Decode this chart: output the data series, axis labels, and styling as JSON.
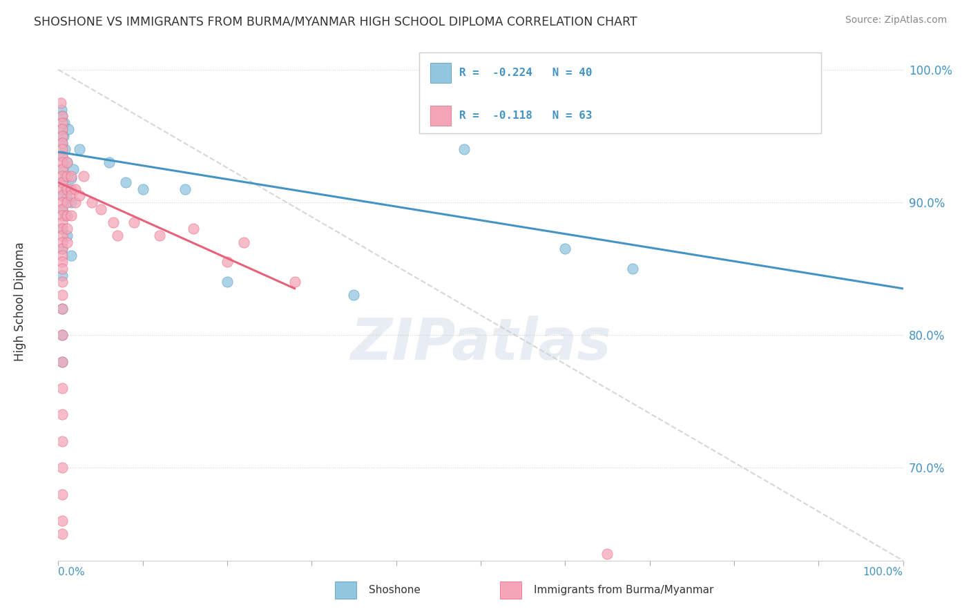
{
  "title": "SHOSHONE VS IMMIGRANTS FROM BURMA/MYANMAR HIGH SCHOOL DIPLOMA CORRELATION CHART",
  "source": "Source: ZipAtlas.com",
  "ylabel": "High School Diploma",
  "legend_label1": "Shoshone",
  "legend_label2": "Immigrants from Burma/Myanmar",
  "watermark": "ZIPatlas",
  "shoshone_color": "#92c5de",
  "burma_color": "#f4a6b8",
  "shoshone_line_color": "#4393c3",
  "burma_line_color": "#e8607a",
  "dashed_line_color": "#cccccc",
  "background_color": "#ffffff",
  "title_color": "#444444",
  "axis_color": "#4393c3",
  "right_tick_color": "#4393c3",
  "legend_r1": "R = -0.224",
  "legend_n1": "N = 40",
  "legend_r2": "R = -0.118",
  "legend_n2": "N = 63",
  "shoshone_points": [
    [
      0.4,
      97.0
    ],
    [
      0.5,
      96.5
    ],
    [
      0.7,
      96.0
    ],
    [
      0.4,
      95.5
    ],
    [
      0.6,
      95.0
    ],
    [
      1.2,
      95.5
    ],
    [
      0.5,
      94.5
    ],
    [
      0.8,
      94.0
    ],
    [
      2.5,
      94.0
    ],
    [
      0.5,
      93.5
    ],
    [
      1.0,
      93.0
    ],
    [
      1.8,
      92.5
    ],
    [
      0.5,
      92.5
    ],
    [
      0.8,
      92.0
    ],
    [
      1.5,
      91.8
    ],
    [
      0.5,
      91.5
    ],
    [
      0.9,
      91.0
    ],
    [
      1.2,
      91.0
    ],
    [
      0.5,
      90.5
    ],
    [
      1.0,
      90.3
    ],
    [
      1.5,
      90.0
    ],
    [
      0.5,
      89.5
    ],
    [
      0.8,
      89.0
    ],
    [
      0.5,
      88.0
    ],
    [
      1.0,
      87.5
    ],
    [
      0.5,
      86.5
    ],
    [
      1.5,
      86.0
    ],
    [
      0.5,
      84.5
    ],
    [
      0.5,
      82.0
    ],
    [
      0.5,
      80.0
    ],
    [
      0.5,
      78.0
    ],
    [
      6.0,
      93.0
    ],
    [
      8.0,
      91.5
    ],
    [
      10.0,
      91.0
    ],
    [
      15.0,
      91.0
    ],
    [
      20.0,
      84.0
    ],
    [
      35.0,
      83.0
    ],
    [
      48.0,
      94.0
    ],
    [
      60.0,
      86.5
    ],
    [
      68.0,
      85.0
    ]
  ],
  "burma_points": [
    [
      0.3,
      97.5
    ],
    [
      0.5,
      96.5
    ],
    [
      0.5,
      96.0
    ],
    [
      0.5,
      95.5
    ],
    [
      0.5,
      95.0
    ],
    [
      0.5,
      94.5
    ],
    [
      0.5,
      94.0
    ],
    [
      0.5,
      93.5
    ],
    [
      0.5,
      93.0
    ],
    [
      0.5,
      92.5
    ],
    [
      0.5,
      92.0
    ],
    [
      0.5,
      91.5
    ],
    [
      0.5,
      91.0
    ],
    [
      0.5,
      90.5
    ],
    [
      0.5,
      90.0
    ],
    [
      0.5,
      89.5
    ],
    [
      0.5,
      89.0
    ],
    [
      0.5,
      88.5
    ],
    [
      0.5,
      88.0
    ],
    [
      0.5,
      87.5
    ],
    [
      0.5,
      87.0
    ],
    [
      0.5,
      86.5
    ],
    [
      0.5,
      86.0
    ],
    [
      0.5,
      85.5
    ],
    [
      0.5,
      85.0
    ],
    [
      0.5,
      84.0
    ],
    [
      0.5,
      83.0
    ],
    [
      0.5,
      82.0
    ],
    [
      0.5,
      80.0
    ],
    [
      0.5,
      78.0
    ],
    [
      0.5,
      76.0
    ],
    [
      0.5,
      74.0
    ],
    [
      0.5,
      72.0
    ],
    [
      0.5,
      70.0
    ],
    [
      0.5,
      68.0
    ],
    [
      0.5,
      66.0
    ],
    [
      0.5,
      65.0
    ],
    [
      1.0,
      93.0
    ],
    [
      1.0,
      92.0
    ],
    [
      1.0,
      91.0
    ],
    [
      1.0,
      90.0
    ],
    [
      1.0,
      89.0
    ],
    [
      1.0,
      88.0
    ],
    [
      1.0,
      87.0
    ],
    [
      1.5,
      92.0
    ],
    [
      1.5,
      91.0
    ],
    [
      1.5,
      90.5
    ],
    [
      1.5,
      89.0
    ],
    [
      2.0,
      91.0
    ],
    [
      2.0,
      90.0
    ],
    [
      2.5,
      90.5
    ],
    [
      3.0,
      92.0
    ],
    [
      4.0,
      90.0
    ],
    [
      5.0,
      89.5
    ],
    [
      6.5,
      88.5
    ],
    [
      7.0,
      87.5
    ],
    [
      9.0,
      88.5
    ],
    [
      12.0,
      87.5
    ],
    [
      16.0,
      88.0
    ],
    [
      20.0,
      85.5
    ],
    [
      22.0,
      87.0
    ],
    [
      28.0,
      84.0
    ],
    [
      65.0,
      63.5
    ]
  ],
  "xlim": [
    0,
    100
  ],
  "ylim": [
    63,
    102
  ],
  "yticks": [
    100,
    90,
    80,
    70
  ],
  "ytick_labels": [
    "100.0%",
    "90.0%",
    "80.0%",
    "70.0%"
  ],
  "shoshone_trend_x": [
    0,
    100
  ],
  "shoshone_trend_y": [
    93.8,
    83.5
  ],
  "burma_trend_x": [
    0,
    28
  ],
  "burma_trend_y": [
    91.5,
    83.5
  ],
  "dashed_line_x": [
    0,
    100
  ],
  "dashed_line_y": [
    100,
    63
  ]
}
